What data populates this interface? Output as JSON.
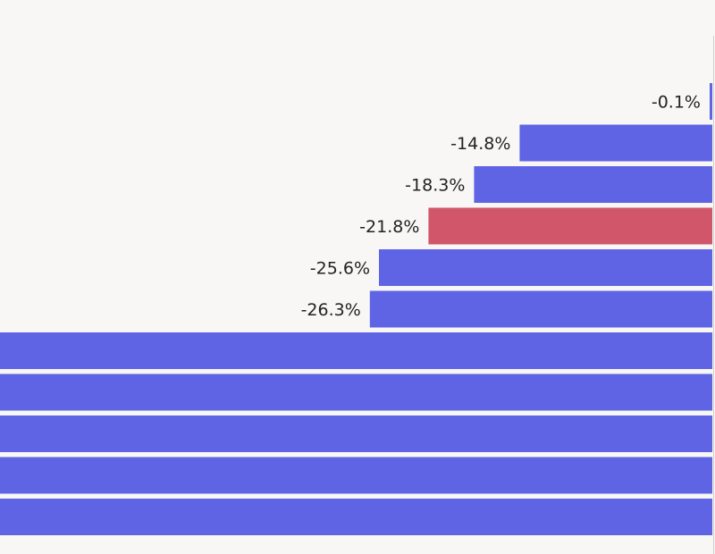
{
  "chart_data": {
    "type": "bar",
    "orientation": "horizontal",
    "grid": false,
    "clipped": true,
    "bars": [
      {
        "value": -0.1,
        "label": "-0.1%",
        "highlight": false
      },
      {
        "value": -14.8,
        "label": "-14.8%",
        "highlight": false
      },
      {
        "value": -18.3,
        "label": "-18.3%",
        "highlight": false
      },
      {
        "value": -21.8,
        "label": "-21.8%",
        "highlight": true
      },
      {
        "value": -25.6,
        "label": "-25.6%",
        "highlight": false
      },
      {
        "value": -26.3,
        "label": "-26.3%",
        "highlight": false
      },
      {
        "value": null,
        "label": "",
        "highlight": false
      },
      {
        "value": null,
        "label": "",
        "highlight": false
      },
      {
        "value": null,
        "label": "",
        "highlight": false
      },
      {
        "value": null,
        "label": "",
        "highlight": false
      },
      {
        "value": null,
        "label": "",
        "highlight": false
      }
    ],
    "colors": {
      "bar": "#5f64e4",
      "highlight": "#d15669",
      "background": "#f8f7f5",
      "label": "#222222",
      "rule": "#cfcfcf"
    }
  }
}
